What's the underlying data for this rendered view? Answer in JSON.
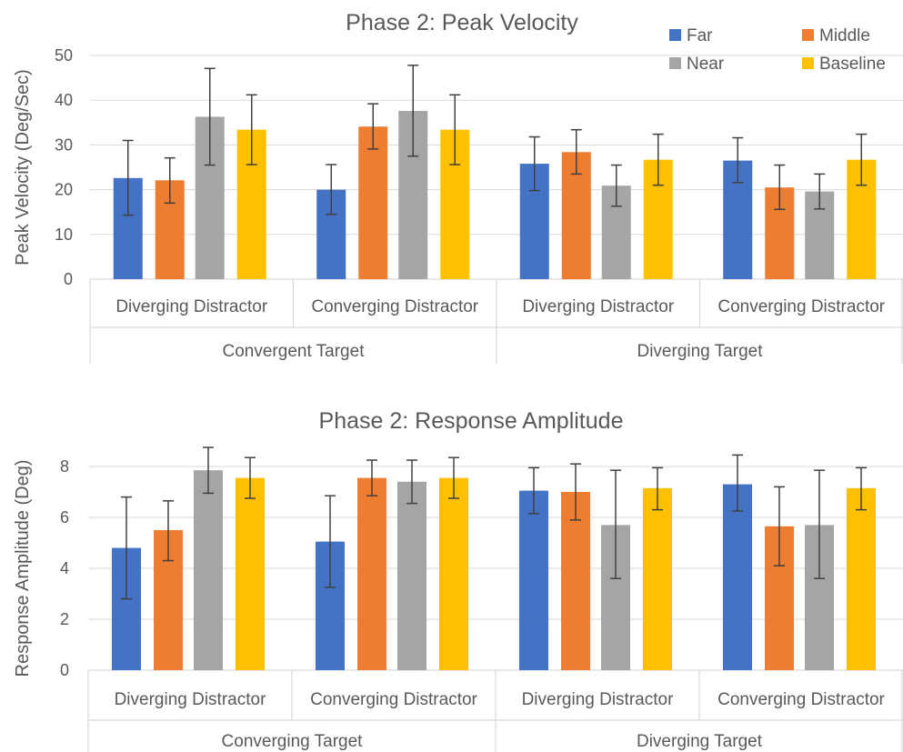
{
  "series_styles": {
    "Far": "#4472C4",
    "Middle": "#ED7D31",
    "Near": "#A5A5A5",
    "Baseline": "#FFC000"
  },
  "colors": {
    "grid": "#D9D9D9",
    "error_bar": "#404040",
    "text": "#595959"
  },
  "legend": {
    "labels": [
      "Far",
      "Middle",
      "Near",
      "Baseline"
    ],
    "placement": "top-right"
  },
  "chart_data": [
    {
      "type": "bar",
      "title": "Phase 2: Peak Velocity",
      "ylabel": "Peak Velocity (Deg/Sec)",
      "ylim": [
        0,
        50
      ],
      "yticks": [
        0,
        10,
        20,
        30,
        40,
        50
      ],
      "grid": true,
      "categories": [
        "Diverging Distractor",
        "Converging Distractor",
        "Diverging Distractor",
        "Converging Distractor"
      ],
      "groups": [
        {
          "label": "Convergent Target",
          "span": [
            0,
            1
          ]
        },
        {
          "label": "Diverging Target",
          "span": [
            2,
            3
          ]
        }
      ],
      "series": [
        {
          "name": "Far",
          "values": [
            22.6,
            20.0,
            25.8,
            26.5
          ],
          "err_low": [
            14.3,
            14.5,
            19.8,
            21.6
          ],
          "err_high": [
            31.0,
            25.6,
            31.8,
            31.6
          ]
        },
        {
          "name": "Middle",
          "values": [
            22.1,
            34.1,
            28.4,
            20.5
          ],
          "err_low": [
            17.0,
            29.1,
            23.5,
            15.6
          ],
          "err_high": [
            27.1,
            39.2,
            33.4,
            25.5
          ]
        },
        {
          "name": "Near",
          "values": [
            36.3,
            37.6,
            20.9,
            19.6
          ],
          "err_low": [
            25.5,
            27.5,
            16.3,
            15.7
          ],
          "err_high": [
            47.1,
            47.8,
            25.5,
            23.5
          ]
        },
        {
          "name": "Baseline",
          "values": [
            33.4,
            33.4,
            26.7,
            26.7
          ],
          "err_low": [
            25.6,
            25.6,
            21.0,
            21.0
          ],
          "err_high": [
            41.2,
            41.2,
            32.4,
            32.4
          ]
        }
      ]
    },
    {
      "type": "bar",
      "title": "Phase 2: Response Amplitude",
      "ylabel": "Response Amplitude (Deg)",
      "ylim": [
        0,
        9
      ],
      "yticks": [
        0,
        2,
        4,
        6,
        8
      ],
      "grid": true,
      "categories": [
        "Diverging Distractor",
        "Converging Distractor",
        "Diverging Distractor",
        "Converging Distractor"
      ],
      "groups": [
        {
          "label": "Converging Target",
          "span": [
            0,
            1
          ]
        },
        {
          "label": "Diverging Target",
          "span": [
            2,
            3
          ]
        }
      ],
      "series": [
        {
          "name": "Far",
          "values": [
            4.8,
            5.05,
            7.05,
            7.3
          ],
          "err_low": [
            2.8,
            3.25,
            6.15,
            6.25
          ],
          "err_high": [
            6.8,
            6.85,
            7.95,
            8.45
          ]
        },
        {
          "name": "Middle",
          "values": [
            5.5,
            7.55,
            7.0,
            5.65
          ],
          "err_low": [
            4.3,
            6.85,
            5.9,
            4.1
          ],
          "err_high": [
            6.65,
            8.25,
            8.1,
            7.2
          ]
        },
        {
          "name": "Near",
          "values": [
            7.85,
            7.4,
            5.7,
            5.7
          ],
          "err_low": [
            6.95,
            6.55,
            3.6,
            3.6
          ],
          "err_high": [
            8.75,
            8.25,
            7.85,
            7.85
          ]
        },
        {
          "name": "Baseline",
          "values": [
            7.55,
            7.55,
            7.15,
            7.15
          ],
          "err_low": [
            6.75,
            6.75,
            6.3,
            6.3
          ],
          "err_high": [
            8.35,
            8.35,
            7.95,
            7.95
          ]
        }
      ]
    }
  ]
}
